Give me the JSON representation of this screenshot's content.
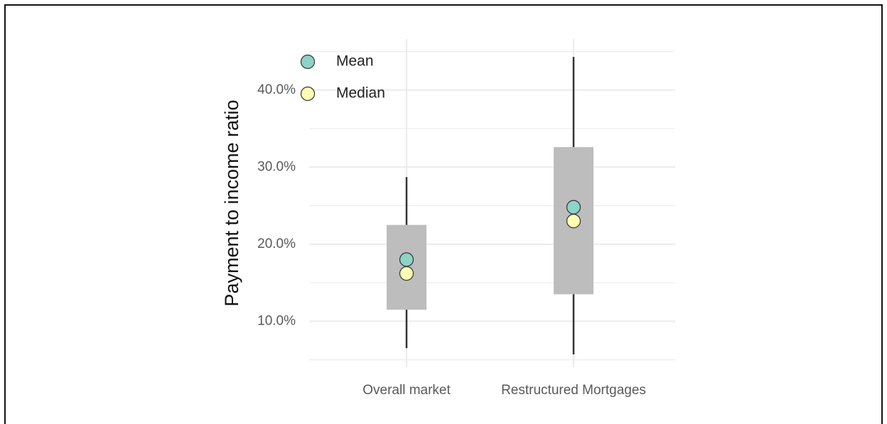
{
  "chart_data": {
    "type": "boxplot",
    "title": "",
    "xlabel": "",
    "ylabel": "Payment to income ratio",
    "categories": [
      "Overall market",
      "Restructured Mortgages"
    ],
    "ylim": [
      0.045,
      0.48
    ],
    "y_ticks": [
      0.1,
      0.2,
      0.3,
      0.4
    ],
    "y_tick_labels": [
      "10.0%",
      "20.0%",
      "30.0%",
      "40.0%"
    ],
    "grid": true,
    "boxes": [
      {
        "category": "Overall market",
        "whisker_low": 0.065,
        "q1": 0.115,
        "q3": 0.225,
        "whisker_high": 0.287,
        "mean": 0.18,
        "median": 0.162
      },
      {
        "category": "Restructured Mortgages",
        "whisker_low": 0.057,
        "q1": 0.135,
        "q3": 0.326,
        "whisker_high": 0.443,
        "mean": 0.248,
        "median": 0.23
      }
    ],
    "legend": {
      "position": "top-left",
      "entries": [
        {
          "label": "Mean",
          "color": "#8dd3c7"
        },
        {
          "label": "Median",
          "color": "#ffffb3"
        }
      ]
    },
    "colors": {
      "box": "#bdbdbd",
      "whisker": "#333333",
      "grid": "#ebebeb",
      "point_stroke": "#333333"
    }
  }
}
